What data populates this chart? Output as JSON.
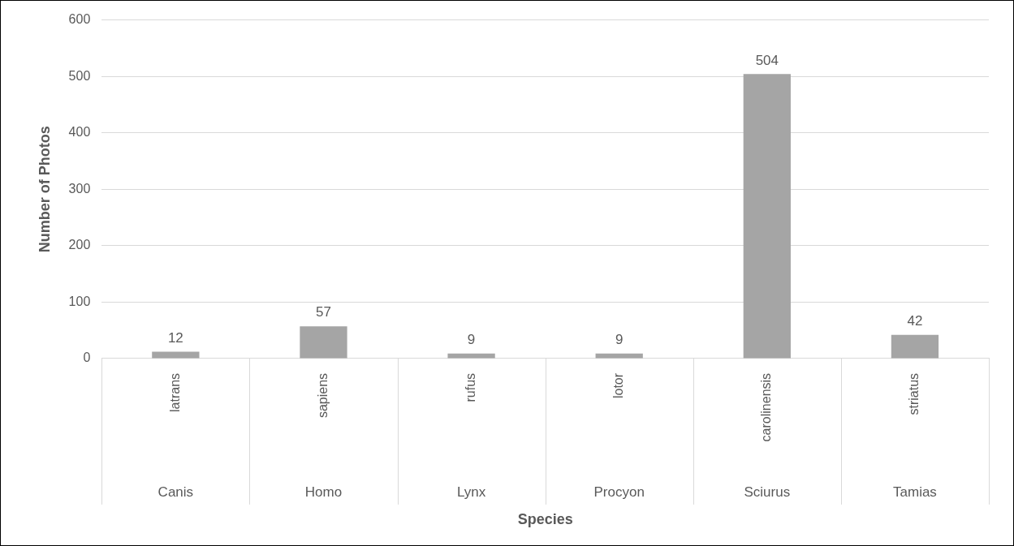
{
  "chart_data": {
    "type": "bar",
    "xlabel": "Species",
    "ylabel": "Number of Photos",
    "categories": [
      "latrans",
      "sapiens",
      "rufus",
      "lotor",
      "carolinensis",
      "striatus"
    ],
    "values": [
      12,
      57,
      9,
      9,
      504,
      42
    ],
    "color": "#a5a5a5",
    "data_labels": true,
    "ylim": [
      0,
      600
    ],
    "yticks": [
      0,
      100,
      200,
      300,
      400,
      500,
      600
    ],
    "grid": "y",
    "legend": false,
    "annotations": [
      "Canis",
      "Homo",
      "Lynx",
      "Procyon",
      "Sciurus",
      "Tamias"
    ]
  }
}
